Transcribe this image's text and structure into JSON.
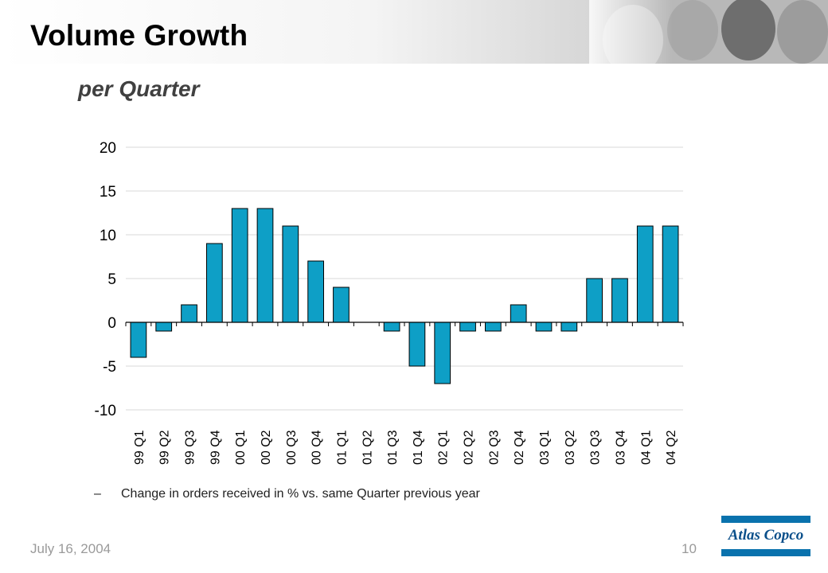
{
  "slide": {
    "title": "Volume Growth",
    "subtitle": "per Quarter",
    "footnote_bullet": "–",
    "footnote": "Change in orders received in % vs. same Quarter previous year",
    "date": "July 16, 2004",
    "page_number": "10",
    "logo_text": "Atlas Copco"
  },
  "colors": {
    "bar": "#0e9fc6",
    "bar_outline": "#000000",
    "grid": "#d9d9d9",
    "axis": "#000000",
    "logo_blue": "#0a72ad"
  },
  "chart_data": {
    "type": "bar",
    "categories": [
      "99 Q1",
      "99 Q2",
      "99 Q3",
      "99 Q4",
      "00 Q1",
      "00 Q2",
      "00 Q3",
      "00 Q4",
      "01 Q1",
      "01 Q2",
      "01 Q3",
      "01 Q4",
      "02 Q1",
      "02 Q2",
      "02 Q3",
      "02 Q4",
      "03 Q1",
      "03 Q2",
      "03 Q3",
      "03 Q4",
      "04 Q1",
      "04 Q2"
    ],
    "values": [
      -4,
      -1,
      2,
      9,
      13,
      13,
      11,
      7,
      4,
      0,
      -1,
      -5,
      -7,
      -1,
      -1,
      2,
      -1,
      -1,
      5,
      5,
      11,
      11
    ],
    "ylim": [
      -10,
      20
    ],
    "yticks": [
      -10,
      -5,
      0,
      5,
      10,
      15,
      20
    ],
    "xlabel": "",
    "ylabel": "",
    "grid": true,
    "legend": "none"
  }
}
